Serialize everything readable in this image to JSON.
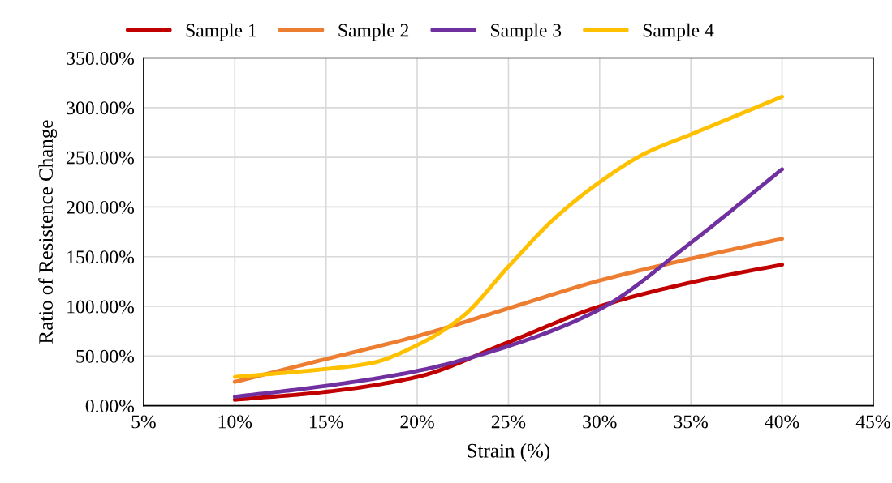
{
  "chart_data": {
    "type": "line",
    "xlabel": "Strain (%)",
    "ylabel": "Ratio of Resistence Change",
    "x": [
      10,
      15,
      20,
      25,
      30,
      35,
      40
    ],
    "series": [
      {
        "name": "Sample 1",
        "color": "#c00000",
        "values": [
          6,
          14,
          29,
          64,
          100,
          124,
          142
        ]
      },
      {
        "name": "Sample 2",
        "color": "#ed7d31",
        "values": [
          24,
          47,
          70,
          98,
          126,
          148,
          168
        ]
      },
      {
        "name": "Sample 3",
        "color": "#7030a0",
        "values": [
          9,
          20,
          35,
          60,
          97,
          164,
          238
        ]
      },
      {
        "name": "Sample 4",
        "color": "#ffc000",
        "x": [
          10,
          15,
          17.5,
          20,
          22.5,
          25,
          27.5,
          30,
          32.5,
          35,
          40
        ],
        "values": [
          29,
          37,
          43,
          61,
          90,
          140,
          188,
          225,
          254,
          273,
          311
        ]
      }
    ],
    "xlim": [
      5,
      45
    ],
    "xticks": [
      {
        "value": 5,
        "label": "5%"
      },
      {
        "value": 10,
        "label": "10%"
      },
      {
        "value": 15,
        "label": "15%"
      },
      {
        "value": 20,
        "label": "20%"
      },
      {
        "value": 25,
        "label": "25%"
      },
      {
        "value": 30,
        "label": "30%"
      },
      {
        "value": 35,
        "label": "35%"
      },
      {
        "value": 40,
        "label": "40%"
      },
      {
        "value": 45,
        "label": "45%"
      }
    ],
    "ylim": [
      0,
      350
    ],
    "yticks": [
      {
        "value": 0,
        "label": "0.00%"
      },
      {
        "value": 50,
        "label": "50.00%"
      },
      {
        "value": 100,
        "label": "100.00%"
      },
      {
        "value": 150,
        "label": "150.00%"
      },
      {
        "value": 200,
        "label": "200.00%"
      },
      {
        "value": 250,
        "label": "250.00%"
      },
      {
        "value": 300,
        "label": "300.00%"
      },
      {
        "value": 350,
        "label": "350.00%"
      }
    ],
    "grid": true,
    "legend": "top",
    "marker": "none",
    "line_style": "solid"
  }
}
